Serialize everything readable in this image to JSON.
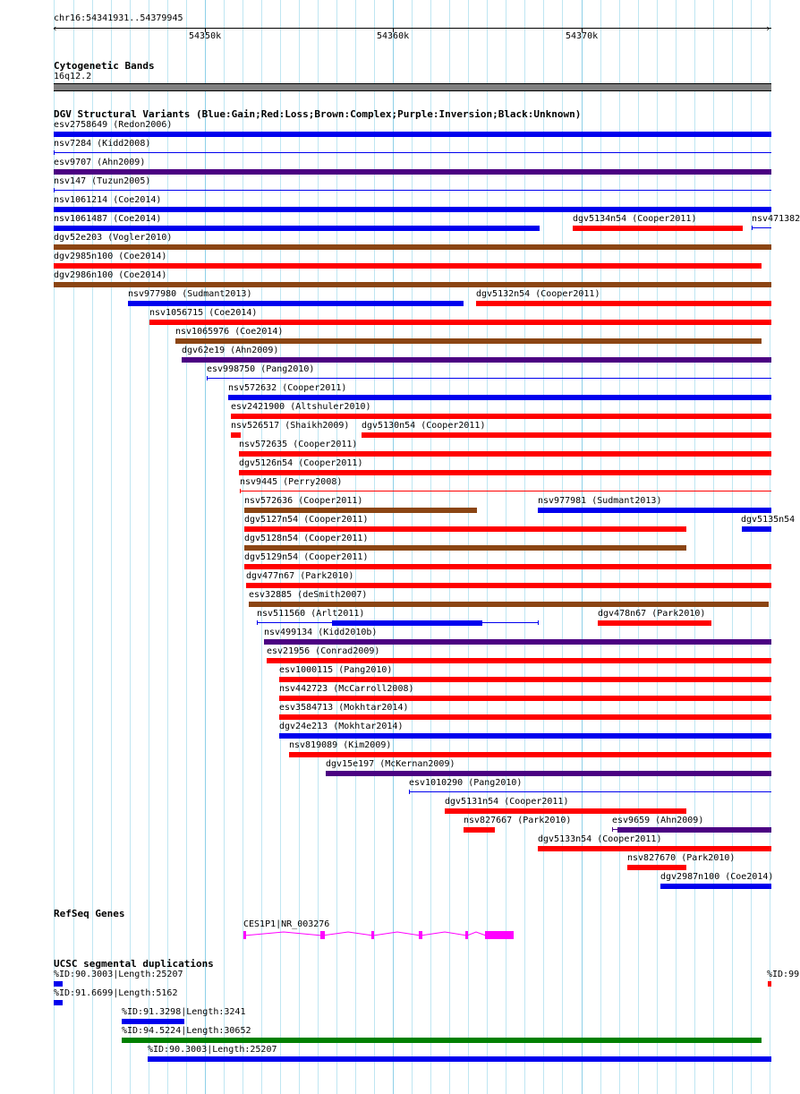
{
  "ruler": {
    "position": "chr16:54341931..54379945",
    "ticks": [
      "54350k",
      "54360k",
      "54370k"
    ]
  },
  "tracks": {
    "cyto": {
      "title": "Cytogenetic Bands",
      "band": "16q12.2"
    },
    "dgv": {
      "title": "DGV Structural Variants (Blue:Gain;Red:Loss;Brown:Complex;Purple:Inversion;Black:Unknown)",
      "colors": {
        "blue": "#0000ee",
        "red": "#ff0000",
        "brown": "#8b4513",
        "purple": "#4b0082"
      }
    },
    "refseq": {
      "title": "RefSeq Genes",
      "gene": "CES1P1|NR_003276",
      "color": "#ff00ff"
    },
    "segdup": {
      "title": "UCSC segmental duplications",
      "edge_label": "%ID:99"
    }
  },
  "variants": [
    {
      "label": "esv2758649 (Redon2006)",
      "color": "blue"
    },
    {
      "label": "nsv7284 (Kidd2008)",
      "color": "blue"
    },
    {
      "label": "esv9707 (Ahn2009)",
      "color": "purple"
    },
    {
      "label": "nsv147 (Tuzun2005)",
      "color": "blue"
    },
    {
      "label": "nsv1061214 (Coe2014)",
      "color": "blue"
    },
    {
      "label": "nsv1061487 (Coe2014)",
      "color": "blue"
    },
    {
      "label": "dgv5134n54 (Cooper2011)",
      "color": "red"
    },
    {
      "label": "nsv471382",
      "color": "blue"
    },
    {
      "label": "dgv52e203 (Vogler2010)",
      "color": "brown"
    },
    {
      "label": "dgv2985n100 (Coe2014)",
      "color": "red"
    },
    {
      "label": "dgv2986n100 (Coe2014)",
      "color": "brown"
    },
    {
      "label": "nsv977980 (Sudmant2013)",
      "color": "blue"
    },
    {
      "label": "dgv5132n54 (Cooper2011)",
      "color": "red"
    },
    {
      "label": "nsv1056715 (Coe2014)",
      "color": "red"
    },
    {
      "label": "nsv1065976 (Coe2014)",
      "color": "brown"
    },
    {
      "label": "dgv62e19 (Ahn2009)",
      "color": "purple"
    },
    {
      "label": "esv998750 (Pang2010)",
      "color": "blue"
    },
    {
      "label": "nsv572632 (Cooper2011)",
      "color": "blue"
    },
    {
      "label": "esv2421900 (Altshuler2010)",
      "color": "red"
    },
    {
      "label": "nsv526517 (Shaikh2009)",
      "color": "red"
    },
    {
      "label": "dgv5130n54 (Cooper2011)",
      "color": "red"
    },
    {
      "label": "nsv572635 (Cooper2011)",
      "color": "red"
    },
    {
      "label": "dgv5126n54 (Cooper2011)",
      "color": "red"
    },
    {
      "label": "nsv9445 (Perry2008)",
      "color": "red"
    },
    {
      "label": "nsv572636 (Cooper2011)",
      "color": "brown"
    },
    {
      "label": "nsv977981 (Sudmant2013)",
      "color": "blue"
    },
    {
      "label": "dgv5127n54 (Cooper2011)",
      "color": "red"
    },
    {
      "label": "dgv5135n54",
      "color": "blue"
    },
    {
      "label": "dgv5128n54 (Cooper2011)",
      "color": "brown"
    },
    {
      "label": "dgv5129n54 (Cooper2011)",
      "color": "red"
    },
    {
      "label": "dgv477n67 (Park2010)",
      "color": "red"
    },
    {
      "label": "esv32885 (deSmith2007)",
      "color": "brown"
    },
    {
      "label": "nsv511560 (Arlt2011)",
      "color": "blue"
    },
    {
      "label": "dgv478n67 (Park2010)",
      "color": "red"
    },
    {
      "label": "nsv499134 (Kidd2010b)",
      "color": "purple"
    },
    {
      "label": "esv21956 (Conrad2009)",
      "color": "red"
    },
    {
      "label": "esv1000115 (Pang2010)",
      "color": "red"
    },
    {
      "label": "nsv442723 (McCarroll2008)",
      "color": "red"
    },
    {
      "label": "esv3584713 (Mokhtar2014)",
      "color": "red"
    },
    {
      "label": "dgv24e213 (Mokhtar2014)",
      "color": "blue"
    },
    {
      "label": "nsv819089 (Kim2009)",
      "color": "red"
    },
    {
      "label": "dgv15e197 (McKernan2009)",
      "color": "purple"
    },
    {
      "label": "esv1010290 (Pang2010)",
      "color": "blue"
    },
    {
      "label": "dgv5131n54 (Cooper2011)",
      "color": "red"
    },
    {
      "label": "nsv827667 (Park2010)",
      "color": "red"
    },
    {
      "label": "esv9659 (Ahn2009)",
      "color": "purple"
    },
    {
      "label": "dgv5133n54 (Cooper2011)",
      "color": "red"
    },
    {
      "label": "nsv827670 (Park2010)",
      "color": "red"
    },
    {
      "label": "dgv2987n100 (Coe2014)",
      "color": "blue"
    }
  ],
  "segdups": [
    {
      "label": "%ID:90.3003|Length:25207",
      "color": "blue"
    },
    {
      "label": "%ID:91.6699|Length:5162",
      "color": "blue"
    },
    {
      "label": "%ID:91.3298|Length:3241",
      "color": "blue"
    },
    {
      "label": "%ID:94.5224|Length:30652",
      "color": "green"
    },
    {
      "label": "%ID:90.3003|Length:25207",
      "color": "blue"
    }
  ]
}
